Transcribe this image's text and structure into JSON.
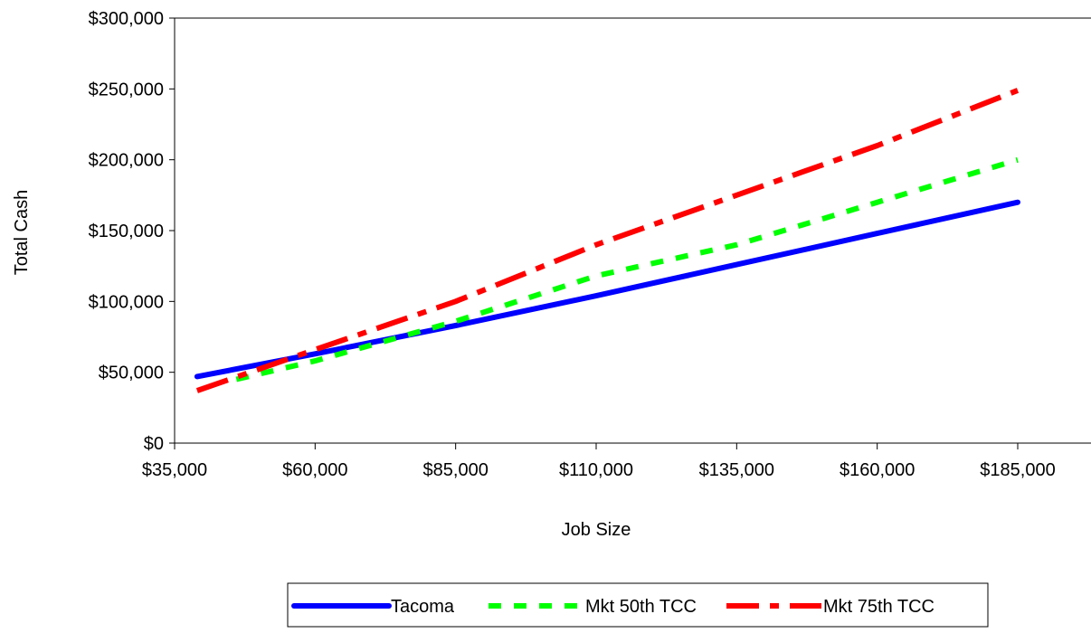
{
  "chart_data": {
    "type": "line",
    "title": "",
    "xlabel": "Job Size",
    "ylabel": "Total Cash",
    "xlim": [
      35000,
      185000
    ],
    "ylim": [
      0,
      300000
    ],
    "x_ticks": [
      35000,
      60000,
      85000,
      110000,
      135000,
      160000,
      185000
    ],
    "x_tick_labels": [
      "$35,000",
      "$60,000",
      "$85,000",
      "$110,000",
      "$135,000",
      "$160,000",
      "$185,000"
    ],
    "y_ticks": [
      0,
      50000,
      100000,
      150000,
      200000,
      250000,
      300000
    ],
    "y_tick_labels": [
      "$0",
      "$50,000",
      "$100,000",
      "$150,000",
      "$200,000",
      "$250,000",
      "$300,000"
    ],
    "grid": false,
    "legend_position": "bottom",
    "series": [
      {
        "name": "Tacoma",
        "color": "#0000ff",
        "style": "solid",
        "x": [
          39000,
          60000,
          85000,
          110000,
          135000,
          160000,
          185000
        ],
        "y": [
          47000,
          63000,
          83000,
          104000,
          126000,
          148000,
          170000
        ]
      },
      {
        "name": "Mkt 50th TCC",
        "color": "#00ff00",
        "style": "dashed",
        "x": [
          46000,
          60000,
          85000,
          110000,
          135000,
          160000,
          185000
        ],
        "y": [
          45000,
          58000,
          86000,
          118000,
          140000,
          170000,
          200000
        ]
      },
      {
        "name": "Mkt 75th TCC",
        "color": "#ff0000",
        "style": "dashdot",
        "x": [
          39000,
          60000,
          85000,
          110000,
          135000,
          160000,
          185000
        ],
        "y": [
          37000,
          66000,
          100000,
          140000,
          175000,
          210000,
          249000
        ]
      }
    ]
  }
}
